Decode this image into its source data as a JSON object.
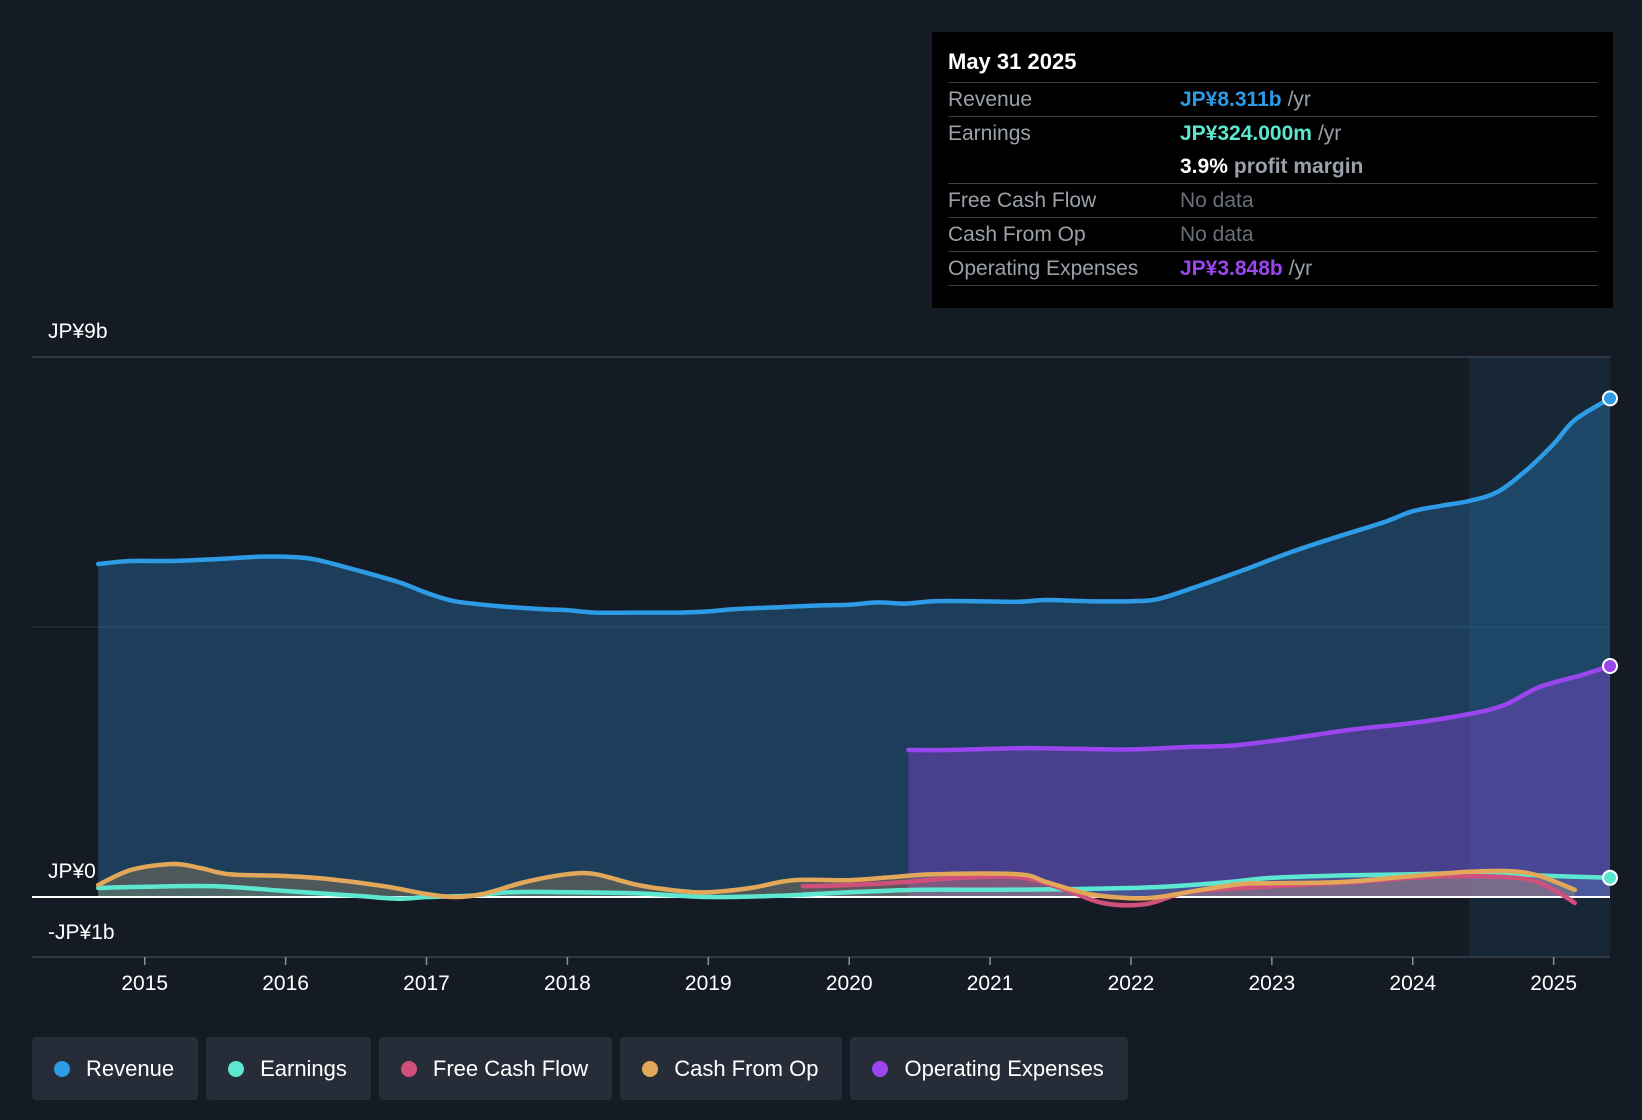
{
  "tooltip": {
    "date": "May 31 2025",
    "revenue_label": "Revenue",
    "revenue_value": "JP¥8.311b",
    "earnings_label": "Earnings",
    "earnings_value": "JP¥324.000m",
    "margin_value": "3.9%",
    "margin_text": "profit margin",
    "fcf_label": "Free Cash Flow",
    "fcf_value": "No data",
    "cfo_label": "Cash From Op",
    "cfo_value": "No data",
    "opex_label": "Operating Expenses",
    "opex_value": "JP¥3.848b",
    "unit": "/yr"
  },
  "colors": {
    "revenue": "#2d9be6",
    "earnings": "#5ee7d0",
    "fcf": "#d0507c",
    "cfo": "#e3a75a",
    "opex": "#9b45ee"
  },
  "chart_data": {
    "type": "area",
    "title": "",
    "ylim": [
      -1,
      9
    ],
    "y_tick_labels": [
      "JP¥9b",
      "JP¥0",
      "-JP¥1b"
    ],
    "y_tick_values": [
      9,
      0,
      -1
    ],
    "x_tick_labels": [
      "2015",
      "2016",
      "2017",
      "2018",
      "2019",
      "2020",
      "2021",
      "2022",
      "2023",
      "2024",
      "2025"
    ],
    "x_range": [
      2014.2,
      2025.4
    ],
    "forecast_start": 2024.4,
    "series": [
      {
        "name": "Revenue",
        "key": "revenue",
        "points": [
          [
            2014.67,
            5.55
          ],
          [
            2014.9,
            5.6
          ],
          [
            2015.2,
            5.6
          ],
          [
            2015.5,
            5.63
          ],
          [
            2015.8,
            5.67
          ],
          [
            2016.0,
            5.67
          ],
          [
            2016.2,
            5.63
          ],
          [
            2016.5,
            5.45
          ],
          [
            2016.8,
            5.25
          ],
          [
            2017.0,
            5.07
          ],
          [
            2017.2,
            4.93
          ],
          [
            2017.5,
            4.85
          ],
          [
            2017.8,
            4.8
          ],
          [
            2018.0,
            4.78
          ],
          [
            2018.2,
            4.74
          ],
          [
            2018.5,
            4.74
          ],
          [
            2018.8,
            4.74
          ],
          [
            2019.0,
            4.76
          ],
          [
            2019.2,
            4.8
          ],
          [
            2019.5,
            4.83
          ],
          [
            2019.8,
            4.86
          ],
          [
            2020.0,
            4.87
          ],
          [
            2020.2,
            4.91
          ],
          [
            2020.4,
            4.89
          ],
          [
            2020.6,
            4.93
          ],
          [
            2020.9,
            4.93
          ],
          [
            2021.2,
            4.92
          ],
          [
            2021.4,
            4.95
          ],
          [
            2021.7,
            4.93
          ],
          [
            2022.0,
            4.93
          ],
          [
            2022.2,
            4.97
          ],
          [
            2022.5,
            5.2
          ],
          [
            2022.8,
            5.45
          ],
          [
            2023.0,
            5.63
          ],
          [
            2023.2,
            5.8
          ],
          [
            2023.5,
            6.03
          ],
          [
            2023.8,
            6.25
          ],
          [
            2024.0,
            6.43
          ],
          [
            2024.2,
            6.52
          ],
          [
            2024.4,
            6.6
          ],
          [
            2024.6,
            6.75
          ],
          [
            2024.8,
            7.1
          ],
          [
            2025.0,
            7.55
          ],
          [
            2025.15,
            7.95
          ],
          [
            2025.4,
            8.31
          ]
        ]
      },
      {
        "name": "Earnings",
        "key": "earnings",
        "points": [
          [
            2014.67,
            0.15
          ],
          [
            2015.0,
            0.17
          ],
          [
            2015.5,
            0.18
          ],
          [
            2016.0,
            0.1
          ],
          [
            2016.5,
            0.02
          ],
          [
            2016.8,
            -0.03
          ],
          [
            2017.0,
            0.0
          ],
          [
            2017.3,
            0.02
          ],
          [
            2017.6,
            0.08
          ],
          [
            2018.0,
            0.08
          ],
          [
            2018.5,
            0.06
          ],
          [
            2019.0,
            0.0
          ],
          [
            2019.5,
            0.02
          ],
          [
            2020.0,
            0.08
          ],
          [
            2020.5,
            0.12
          ],
          [
            2021.0,
            0.12
          ],
          [
            2021.5,
            0.13
          ],
          [
            2022.0,
            0.15
          ],
          [
            2022.3,
            0.18
          ],
          [
            2022.7,
            0.25
          ],
          [
            2023.0,
            0.32
          ],
          [
            2023.5,
            0.36
          ],
          [
            2024.0,
            0.38
          ],
          [
            2024.5,
            0.4
          ],
          [
            2025.0,
            0.35
          ],
          [
            2025.4,
            0.32
          ]
        ]
      },
      {
        "name": "Free Cash Flow",
        "key": "fcf",
        "points": [
          [
            2019.67,
            0.18
          ],
          [
            2020.0,
            0.2
          ],
          [
            2020.4,
            0.25
          ],
          [
            2020.8,
            0.32
          ],
          [
            2021.2,
            0.33
          ],
          [
            2021.5,
            0.15
          ],
          [
            2021.8,
            -0.1
          ],
          [
            2022.1,
            -0.12
          ],
          [
            2022.4,
            0.08
          ],
          [
            2022.8,
            0.15
          ],
          [
            2023.2,
            0.2
          ],
          [
            2023.6,
            0.25
          ],
          [
            2024.0,
            0.32
          ],
          [
            2024.4,
            0.35
          ],
          [
            2024.8,
            0.3
          ],
          [
            2025.0,
            0.12
          ],
          [
            2025.15,
            -0.1
          ]
        ]
      },
      {
        "name": "Cash From Op",
        "key": "cfo",
        "points": [
          [
            2014.67,
            0.2
          ],
          [
            2014.9,
            0.45
          ],
          [
            2015.2,
            0.55
          ],
          [
            2015.4,
            0.48
          ],
          [
            2015.6,
            0.38
          ],
          [
            2016.0,
            0.35
          ],
          [
            2016.3,
            0.3
          ],
          [
            2016.7,
            0.18
          ],
          [
            2017.0,
            0.05
          ],
          [
            2017.2,
            0.0
          ],
          [
            2017.4,
            0.05
          ],
          [
            2017.7,
            0.25
          ],
          [
            2018.0,
            0.38
          ],
          [
            2018.2,
            0.38
          ],
          [
            2018.5,
            0.2
          ],
          [
            2018.8,
            0.1
          ],
          [
            2019.0,
            0.08
          ],
          [
            2019.3,
            0.15
          ],
          [
            2019.6,
            0.28
          ],
          [
            2020.0,
            0.28
          ],
          [
            2020.3,
            0.33
          ],
          [
            2020.6,
            0.38
          ],
          [
            2021.2,
            0.38
          ],
          [
            2021.4,
            0.25
          ],
          [
            2021.7,
            0.05
          ],
          [
            2022.0,
            -0.02
          ],
          [
            2022.2,
            0.0
          ],
          [
            2022.5,
            0.12
          ],
          [
            2022.8,
            0.22
          ],
          [
            2023.0,
            0.23
          ],
          [
            2023.5,
            0.25
          ],
          [
            2024.0,
            0.35
          ],
          [
            2024.4,
            0.42
          ],
          [
            2024.7,
            0.43
          ],
          [
            2024.9,
            0.35
          ],
          [
            2025.15,
            0.12
          ]
        ]
      },
      {
        "name": "Operating Expenses",
        "key": "opex",
        "points": [
          [
            2020.42,
            2.45
          ],
          [
            2020.7,
            2.45
          ],
          [
            2021.2,
            2.48
          ],
          [
            2021.6,
            2.47
          ],
          [
            2022.0,
            2.46
          ],
          [
            2022.4,
            2.5
          ],
          [
            2022.7,
            2.52
          ],
          [
            2023.0,
            2.6
          ],
          [
            2023.3,
            2.7
          ],
          [
            2023.6,
            2.8
          ],
          [
            2024.0,
            2.9
          ],
          [
            2024.4,
            3.05
          ],
          [
            2024.65,
            3.2
          ],
          [
            2024.9,
            3.5
          ],
          [
            2025.2,
            3.7
          ],
          [
            2025.4,
            3.85
          ]
        ]
      }
    ]
  },
  "legend": [
    {
      "label": "Revenue",
      "key": "revenue"
    },
    {
      "label": "Earnings",
      "key": "earnings"
    },
    {
      "label": "Free Cash Flow",
      "key": "fcf"
    },
    {
      "label": "Cash From Op",
      "key": "cfo"
    },
    {
      "label": "Operating Expenses",
      "key": "opex"
    }
  ]
}
